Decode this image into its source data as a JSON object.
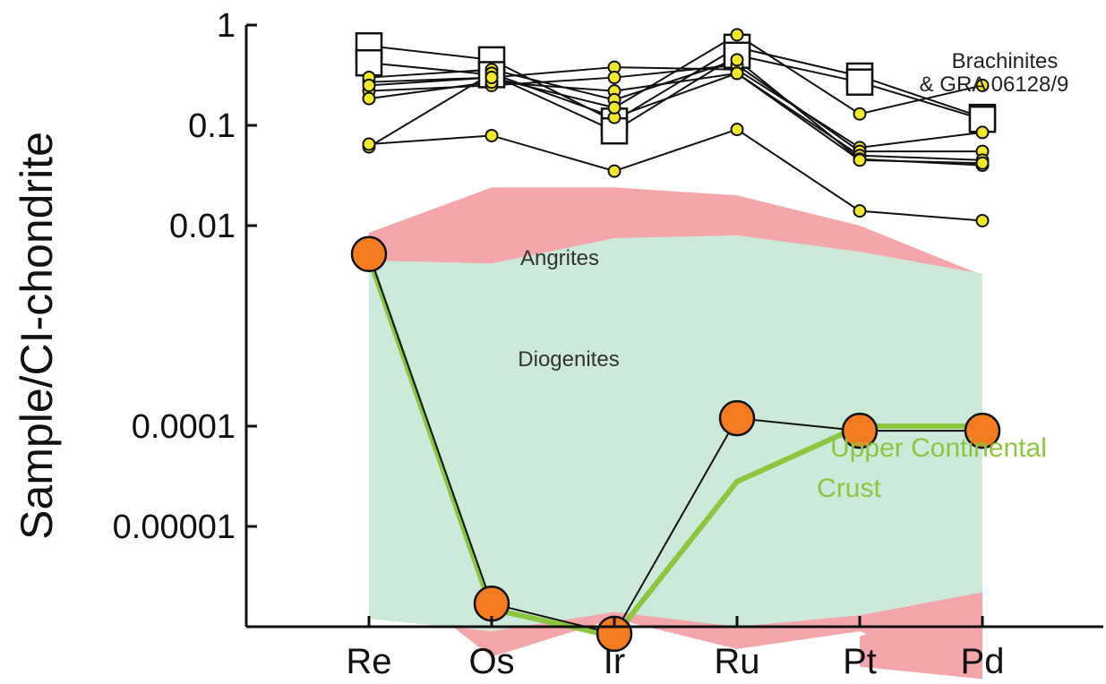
{
  "chart_data": {
    "type": "line",
    "yscale": "log",
    "ylim": [
      1e-06,
      1
    ],
    "ylabel": "Sample/CI-chondrite",
    "xlabel": "",
    "categories": [
      "Re",
      "Os",
      "Ir",
      "Ru",
      "Pt",
      "Pd"
    ],
    "y_ticks": [
      {
        "value": 1,
        "label": "1"
      },
      {
        "value": 0.1,
        "label": "0.1"
      },
      {
        "value": 0.01,
        "label": "0.01"
      },
      {
        "value": 0.0001,
        "label": "0.0001"
      },
      {
        "value": 1e-05,
        "label": "0.00001"
      }
    ],
    "fields": [
      {
        "name": "Angrites",
        "color": "#f4a6ab",
        "upper": [
          0.0085,
          0.024,
          0.024,
          0.02,
          0.01,
          0.0032
        ],
        "lower": [
          4.5e-06,
          5e-07,
          1.2e-06,
          6e-07,
          9e-07,
          3e-07
        ],
        "lower_patch": [
          {
            "x": 0,
            "y": 1.05e-05
          },
          {
            "x": 0.45,
            "y": 1.2e-06
          },
          {
            "x": 0,
            "y": 1.2e-06
          }
        ],
        "lower_patch2": [
          {
            "x": 4.0,
            "y": 8e-07
          },
          {
            "x": 5,
            "y": 2.2e-06
          },
          {
            "x": 5,
            "y": 3e-07
          },
          {
            "x": 4.0,
            "y": 4e-07
          }
        ]
      },
      {
        "name": "Diogenites",
        "color": "#cce9d9",
        "upper": [
          0.0045,
          0.0042,
          0.0075,
          0.008,
          0.0055,
          0.0033
        ],
        "lower": [
          1.2e-06,
          9e-07,
          1.4e-06,
          1e-06,
          1.3e-06,
          2.2e-06
        ]
      }
    ],
    "series": [
      {
        "group": "brachinite",
        "marker": "square",
        "values": [
          0.62,
          0.45,
          0.11,
          0.6,
          0.31,
          0.12
        ]
      },
      {
        "group": "brachinite",
        "marker": "square",
        "values": [
          0.42,
          0.32,
          0.088,
          0.5,
          0.27,
          0.115
        ]
      },
      {
        "group": "brachinite",
        "marker": "circle",
        "values": [
          0.27,
          0.3,
          0.38,
          0.36,
          0.06,
          0.085
        ]
      },
      {
        "group": "brachinite",
        "marker": "circle",
        "values": [
          0.22,
          0.25,
          0.3,
          0.4,
          0.055,
          0.055
        ]
      },
      {
        "group": "brachinite",
        "marker": "circle",
        "values": [
          0.185,
          0.27,
          0.22,
          0.33,
          0.05,
          0.045
        ]
      },
      {
        "group": "brachinite",
        "marker": "circle",
        "values": [
          0.3,
          0.36,
          0.18,
          0.45,
          0.046,
          0.04
        ]
      },
      {
        "group": "brachinite",
        "marker": "circle",
        "values": [
          0.061,
          0.33,
          0.12,
          0.33,
          0.045,
          0.042
        ]
      },
      {
        "group": "brachinite",
        "marker": "circle",
        "values": [
          0.065,
          0.079,
          0.035,
          0.091,
          0.014,
          0.0112
        ]
      },
      {
        "group": "brachinite",
        "marker": "circle",
        "values": [
          0.25,
          0.3,
          0.15,
          0.8,
          0.13,
          0.25
        ]
      },
      {
        "group": "orange",
        "name": "",
        "marker": "big-circle",
        "color": "#f47b20",
        "values": [
          0.0052,
          1.7e-06,
          8.5e-07,
          0.00012,
          9e-05,
          9e-05
        ]
      },
      {
        "group": "ucc",
        "name": "Upper Continental Crust",
        "marker": "none",
        "color": "#8cc63f",
        "values": [
          0.0048,
          1.5e-06,
          8e-07,
          2.8e-05,
          0.0001,
          0.0001
        ]
      }
    ],
    "annotations": [
      {
        "text": "Brachinites",
        "color": "#222222"
      },
      {
        "text": "& GRA 06128/9",
        "color": "#222222"
      },
      {
        "text": "Angrites",
        "color": "#333333"
      },
      {
        "text": "Diogenites",
        "color": "#333333"
      },
      {
        "text": "Upper Continental",
        "color": "#8cc63f"
      },
      {
        "text": "Crust",
        "color": "#8cc63f"
      }
    ],
    "grid": false,
    "legend": "none"
  }
}
